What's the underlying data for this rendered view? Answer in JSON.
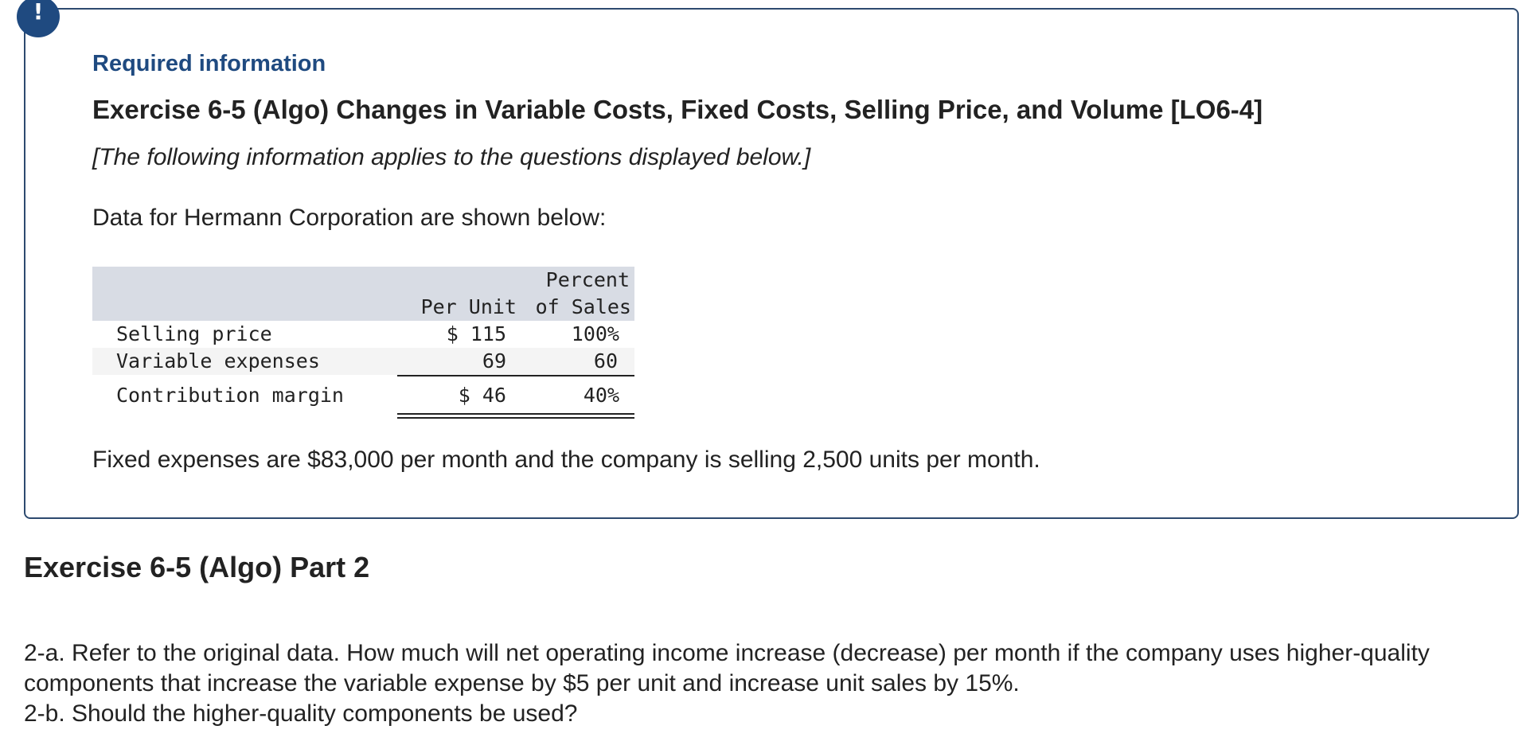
{
  "alert_icon": "!",
  "required_info_title": "Required information",
  "exercise_title": "Exercise 6-5 (Algo) Changes in Variable Costs, Fixed Costs, Selling Price, and Volume [LO6-4]",
  "exercise_note": "[The following information applies to the questions displayed below.]",
  "intro_text": "Data for Hermann Corporation are shown below:",
  "table": {
    "header_per_unit": "Per Unit",
    "header_percent_line1": "Percent",
    "header_percent_line2": "of Sales",
    "rows": [
      {
        "label": "Selling price",
        "per_unit": "$ 115",
        "percent": "100%"
      },
      {
        "label": "Variable expenses",
        "per_unit": "69",
        "percent": "60"
      },
      {
        "label": "Contribution margin",
        "per_unit": "$ 46",
        "percent": "40%"
      }
    ]
  },
  "fixed_expenses_text": "Fixed expenses are $83,000 per month and the company is selling 2,500 units per month.",
  "part_title": "Exercise 6-5 (Algo) Part 2",
  "question_2a_line1": "2-a. Refer to the original data. How much will net operating income increase (decrease) per month if the company uses higher-quality",
  "question_2a_line2": "components that increase the variable expense by $5 per unit and increase unit sales by 15%.",
  "question_2b": "2-b. Should the higher-quality components be used?"
}
